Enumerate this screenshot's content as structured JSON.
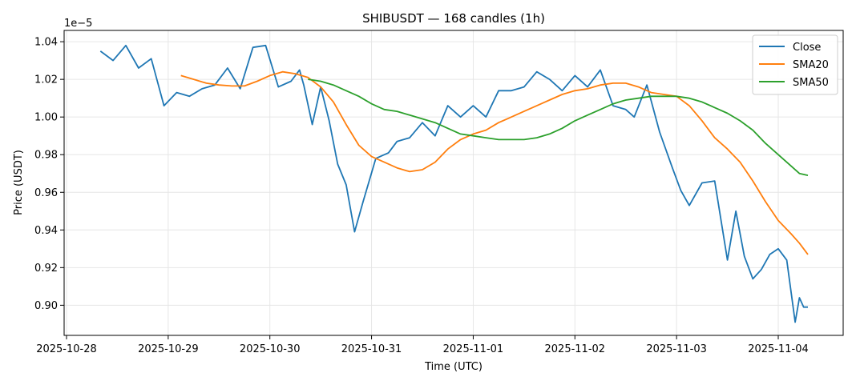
{
  "chart_data": {
    "type": "line",
    "title": "SHIBUSDT — 168 candles (1h)",
    "xlabel": "Time (UTC)",
    "ylabel": "Price (USDT)",
    "y_offset_label": "1e−5",
    "x_tick_labels": [
      "2025-10-28",
      "2025-10-29",
      "2025-10-30",
      "2025-10-31",
      "2025-11-01",
      "2025-11-02",
      "2025-11-03",
      "2025-11-04"
    ],
    "y_tick_labels": [
      "0.90",
      "0.92",
      "0.94",
      "0.96",
      "0.98",
      "1.00",
      "1.02",
      "1.04"
    ],
    "ylim": [
      0.884,
      1.046
    ],
    "grid": true,
    "legend_position": "upper right",
    "series": [
      {
        "name": "Close",
        "color": "#1f77b4",
        "x": [
          "2025-10-28 08:00",
          "2025-10-28 11:00",
          "2025-10-28 14:00",
          "2025-10-28 17:00",
          "2025-10-28 20:00",
          "2025-10-28 23:00",
          "2025-10-29 02:00",
          "2025-10-29 05:00",
          "2025-10-29 08:00",
          "2025-10-29 11:00",
          "2025-10-29 14:00",
          "2025-10-29 17:00",
          "2025-10-29 20:00",
          "2025-10-29 23:00",
          "2025-10-30 02:00",
          "2025-10-30 05:00",
          "2025-10-30 07:00",
          "2025-10-30 08:00",
          "2025-10-30 10:00",
          "2025-10-30 12:00",
          "2025-10-30 14:00",
          "2025-10-30 16:00",
          "2025-10-30 18:00",
          "2025-10-30 20:00",
          "2025-10-30 22:00",
          "2025-10-31 01:00",
          "2025-10-31 04:00",
          "2025-10-31 06:00",
          "2025-10-31 09:00",
          "2025-10-31 12:00",
          "2025-10-31 15:00",
          "2025-10-31 18:00",
          "2025-10-31 21:00",
          "2025-11-01 00:00",
          "2025-11-01 03:00",
          "2025-11-01 06:00",
          "2025-11-01 09:00",
          "2025-11-01 12:00",
          "2025-11-01 15:00",
          "2025-11-01 18:00",
          "2025-11-01 21:00",
          "2025-11-02 00:00",
          "2025-11-02 03:00",
          "2025-11-02 06:00",
          "2025-11-02 09:00",
          "2025-11-02 12:00",
          "2025-11-02 14:00",
          "2025-11-02 17:00",
          "2025-11-02 20:00",
          "2025-11-02 23:00",
          "2025-11-03 01:00",
          "2025-11-03 03:00",
          "2025-11-03 06:00",
          "2025-11-03 09:00",
          "2025-11-03 12:00",
          "2025-11-03 14:00",
          "2025-11-03 16:00",
          "2025-11-03 18:00",
          "2025-11-03 20:00",
          "2025-11-03 22:00",
          "2025-11-04 00:00",
          "2025-11-04 02:00",
          "2025-11-04 04:00",
          "2025-11-04 05:00",
          "2025-11-04 06:00",
          "2025-11-04 07:00"
        ],
        "values": [
          1.035,
          1.03,
          1.038,
          1.026,
          1.031,
          1.006,
          1.013,
          1.011,
          1.015,
          1.017,
          1.026,
          1.015,
          1.037,
          1.038,
          1.016,
          1.019,
          1.025,
          1.017,
          0.996,
          1.016,
          0.998,
          0.975,
          0.964,
          0.939,
          0.955,
          0.978,
          0.981,
          0.987,
          0.989,
          0.997,
          0.99,
          1.006,
          1.0,
          1.006,
          1.0,
          1.014,
          1.014,
          1.016,
          1.024,
          1.02,
          1.014,
          1.022,
          1.016,
          1.025,
          1.006,
          1.004,
          1.0,
          1.017,
          0.992,
          0.973,
          0.961,
          0.953,
          0.965,
          0.966,
          0.924,
          0.95,
          0.926,
          0.914,
          0.919,
          0.927,
          0.93,
          0.924,
          0.891,
          0.904,
          0.899,
          0.899
        ]
      },
      {
        "name": "SMA20",
        "color": "#ff7f0e",
        "x": [
          "2025-10-29 03:00",
          "2025-10-29 06:00",
          "2025-10-29 09:00",
          "2025-10-29 12:00",
          "2025-10-29 15:00",
          "2025-10-29 18:00",
          "2025-10-29 21:00",
          "2025-10-30 00:00",
          "2025-10-30 03:00",
          "2025-10-30 06:00",
          "2025-10-30 09:00",
          "2025-10-30 12:00",
          "2025-10-30 15:00",
          "2025-10-30 18:00",
          "2025-10-30 21:00",
          "2025-10-31 00:00",
          "2025-10-31 03:00",
          "2025-10-31 06:00",
          "2025-10-31 09:00",
          "2025-10-31 12:00",
          "2025-10-31 15:00",
          "2025-10-31 18:00",
          "2025-10-31 21:00",
          "2025-11-01 00:00",
          "2025-11-01 03:00",
          "2025-11-01 06:00",
          "2025-11-01 09:00",
          "2025-11-01 12:00",
          "2025-11-01 15:00",
          "2025-11-01 18:00",
          "2025-11-01 21:00",
          "2025-11-02 00:00",
          "2025-11-02 03:00",
          "2025-11-02 06:00",
          "2025-11-02 09:00",
          "2025-11-02 12:00",
          "2025-11-02 15:00",
          "2025-11-02 18:00",
          "2025-11-02 21:00",
          "2025-11-03 00:00",
          "2025-11-03 03:00",
          "2025-11-03 06:00",
          "2025-11-03 09:00",
          "2025-11-03 12:00",
          "2025-11-03 15:00",
          "2025-11-03 18:00",
          "2025-11-03 21:00",
          "2025-11-04 00:00",
          "2025-11-04 03:00",
          "2025-11-04 05:00",
          "2025-11-04 07:00"
        ],
        "values": [
          1.022,
          1.02,
          1.018,
          1.017,
          1.0165,
          1.0165,
          1.019,
          1.022,
          1.024,
          1.023,
          1.021,
          1.016,
          1.008,
          0.996,
          0.985,
          0.979,
          0.976,
          0.973,
          0.971,
          0.972,
          0.976,
          0.983,
          0.988,
          0.991,
          0.993,
          0.997,
          1.0,
          1.003,
          1.006,
          1.009,
          1.012,
          1.014,
          1.015,
          1.017,
          1.018,
          1.018,
          1.016,
          1.013,
          1.012,
          1.011,
          1.006,
          0.998,
          0.989,
          0.983,
          0.976,
          0.966,
          0.955,
          0.945,
          0.938,
          0.933,
          0.927
        ]
      },
      {
        "name": "SMA50",
        "color": "#2ca02c",
        "x": [
          "2025-10-30 09:00",
          "2025-10-30 12:00",
          "2025-10-30 15:00",
          "2025-10-30 18:00",
          "2025-10-30 21:00",
          "2025-10-31 00:00",
          "2025-10-31 03:00",
          "2025-10-31 06:00",
          "2025-10-31 09:00",
          "2025-10-31 12:00",
          "2025-10-31 15:00",
          "2025-10-31 18:00",
          "2025-10-31 21:00",
          "2025-11-01 00:00",
          "2025-11-01 03:00",
          "2025-11-01 06:00",
          "2025-11-01 09:00",
          "2025-11-01 12:00",
          "2025-11-01 15:00",
          "2025-11-01 18:00",
          "2025-11-01 21:00",
          "2025-11-02 00:00",
          "2025-11-02 03:00",
          "2025-11-02 06:00",
          "2025-11-02 09:00",
          "2025-11-02 12:00",
          "2025-11-02 15:00",
          "2025-11-02 18:00",
          "2025-11-02 21:00",
          "2025-11-03 00:00",
          "2025-11-03 03:00",
          "2025-11-03 06:00",
          "2025-11-03 09:00",
          "2025-11-03 12:00",
          "2025-11-03 15:00",
          "2025-11-03 18:00",
          "2025-11-03 21:00",
          "2025-11-04 00:00",
          "2025-11-04 03:00",
          "2025-11-04 05:00",
          "2025-11-04 07:00"
        ],
        "values": [
          1.02,
          1.019,
          1.017,
          1.014,
          1.011,
          1.007,
          1.004,
          1.003,
          1.001,
          0.999,
          0.997,
          0.994,
          0.991,
          0.99,
          0.989,
          0.988,
          0.988,
          0.988,
          0.989,
          0.991,
          0.994,
          0.998,
          1.001,
          1.004,
          1.007,
          1.009,
          1.01,
          1.011,
          1.011,
          1.011,
          1.01,
          1.008,
          1.005,
          1.002,
          0.998,
          0.993,
          0.986,
          0.98,
          0.974,
          0.97,
          0.969
        ]
      }
    ]
  }
}
